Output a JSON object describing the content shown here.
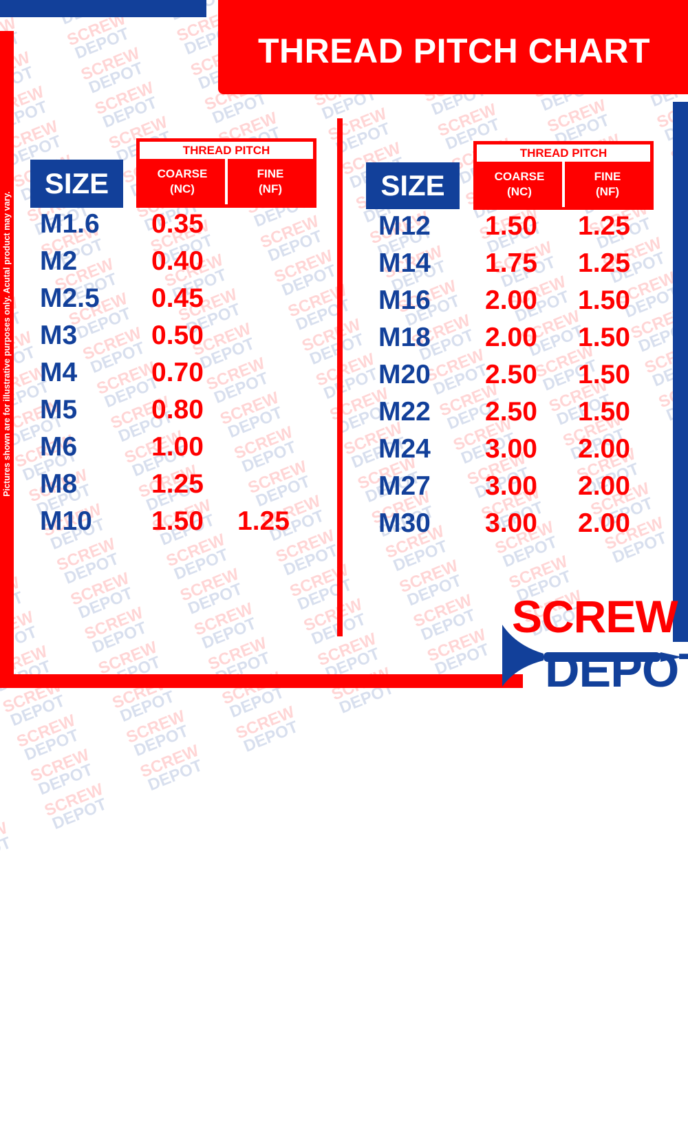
{
  "title": "THREAD PITCH CHART",
  "disclaimer": "Pictures shown are for illustrative purposes only. Acutal product may vary.",
  "watermark_text": [
    "SCREW",
    "DEPOT"
  ],
  "logo": {
    "line1": "SCREW",
    "line2": "DEPOT"
  },
  "colors": {
    "red": "#ff0000",
    "blue": "#12409a"
  },
  "table_header": {
    "size": "SIZE",
    "thread_pitch": "THREAD PITCH",
    "coarse": "COARSE\n(NC)",
    "fine": "FINE\n(NF)"
  },
  "left_rows": [
    {
      "size": "M1.6",
      "coarse": "0.35",
      "fine": ""
    },
    {
      "size": "M2",
      "coarse": "0.40",
      "fine": ""
    },
    {
      "size": "M2.5",
      "coarse": "0.45",
      "fine": ""
    },
    {
      "size": "M3",
      "coarse": "0.50",
      "fine": ""
    },
    {
      "size": "M4",
      "coarse": "0.70",
      "fine": ""
    },
    {
      "size": "M5",
      "coarse": "0.80",
      "fine": ""
    },
    {
      "size": "M6",
      "coarse": "1.00",
      "fine": ""
    },
    {
      "size": "M8",
      "coarse": "1.25",
      "fine": ""
    },
    {
      "size": "M10",
      "coarse": "1.50",
      "fine": "1.25"
    }
  ],
  "right_rows": [
    {
      "size": "M12",
      "coarse": "1.50",
      "fine": "1.25"
    },
    {
      "size": "M14",
      "coarse": "1.75",
      "fine": "1.25"
    },
    {
      "size": "M16",
      "coarse": "2.00",
      "fine": "1.50"
    },
    {
      "size": "M18",
      "coarse": "2.00",
      "fine": "1.50"
    },
    {
      "size": "M20",
      "coarse": "2.50",
      "fine": "1.50"
    },
    {
      "size": "M22",
      "coarse": "2.50",
      "fine": "1.50"
    },
    {
      "size": "M24",
      "coarse": "3.00",
      "fine": "2.00"
    },
    {
      "size": "M27",
      "coarse": "3.00",
      "fine": "2.00"
    },
    {
      "size": "M30",
      "coarse": "3.00",
      "fine": "2.00"
    }
  ]
}
